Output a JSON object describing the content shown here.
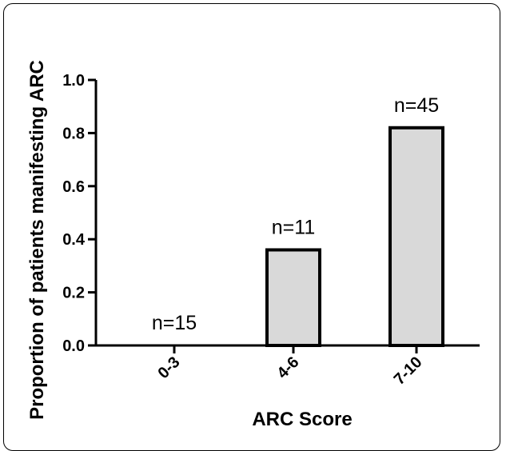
{
  "chart_data": {
    "type": "bar",
    "categories": [
      "0-3",
      "4-6",
      "7-10"
    ],
    "values": [
      0.0,
      0.36,
      0.82
    ],
    "data_labels": [
      "n=15",
      "n=11",
      "n=45"
    ],
    "title": "",
    "xlabel": "ARC Score",
    "ylabel": "Proportion of patients manifesting ARC",
    "ylim": [
      0,
      1.0
    ],
    "yticks": [
      0.0,
      0.2,
      0.4,
      0.6,
      0.8,
      1.0
    ],
    "ytick_labels": [
      "0.0",
      "0.2",
      "0.4",
      "0.6",
      "0.8",
      "1.0"
    ],
    "grid": false,
    "bar_fill": "#d9d9d9",
    "bar_stroke": "#000000"
  }
}
